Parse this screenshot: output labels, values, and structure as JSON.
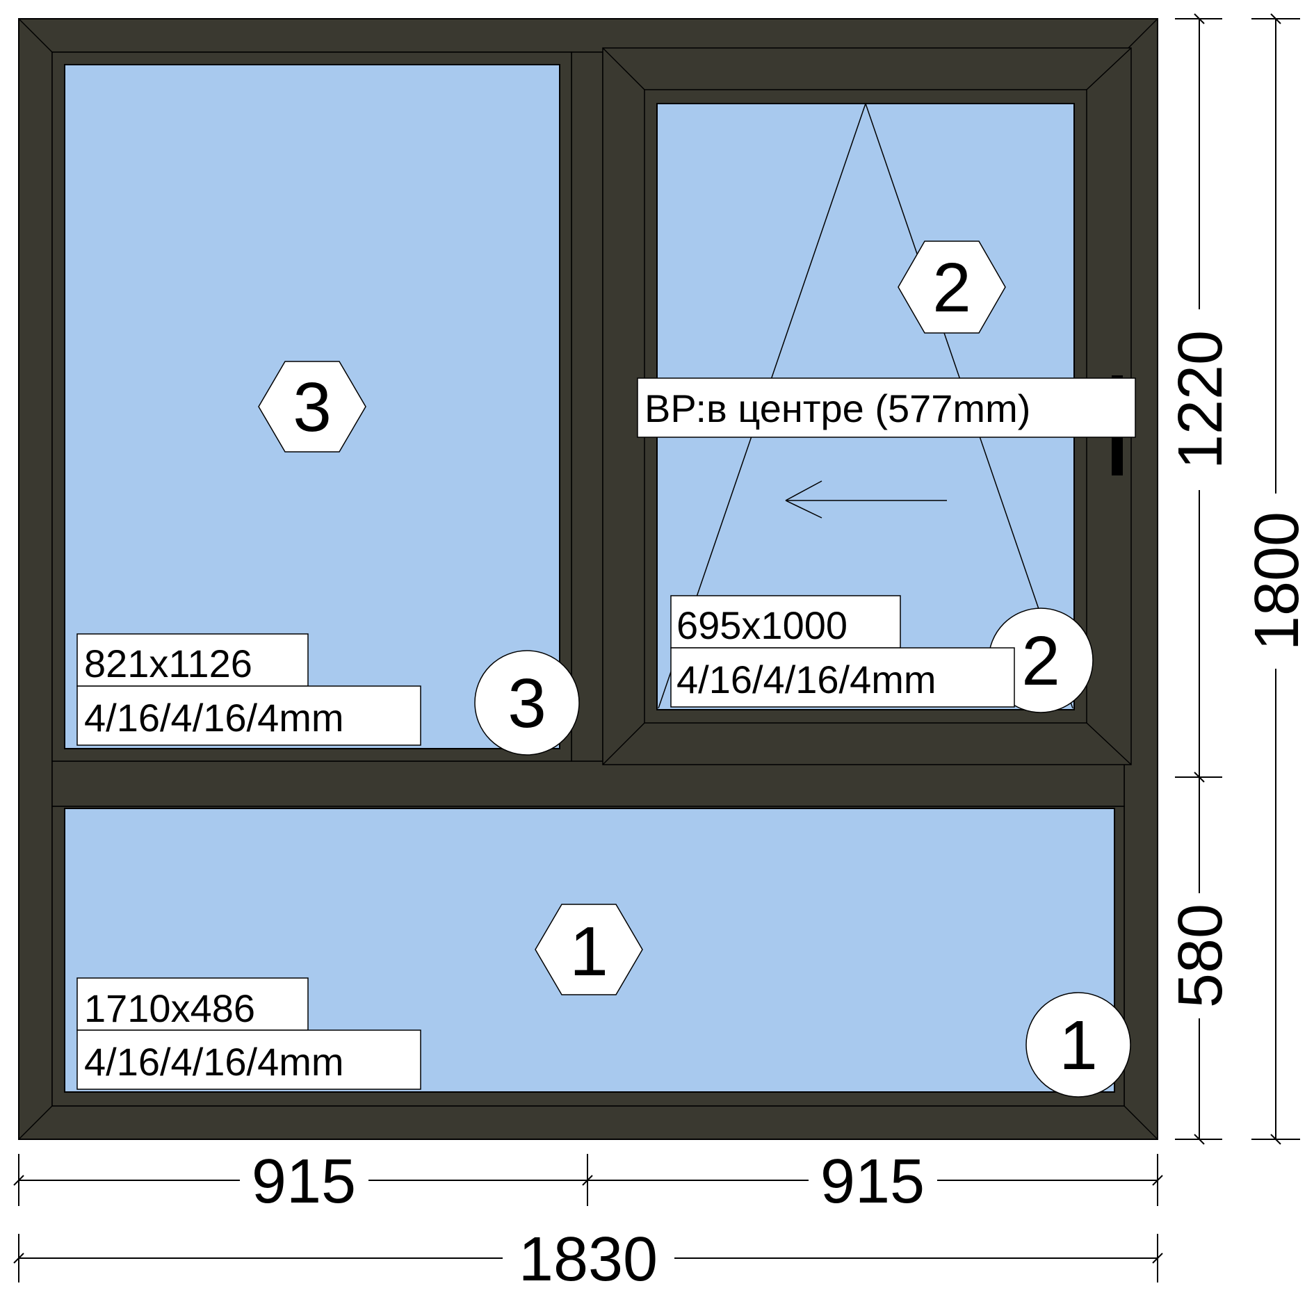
{
  "panes": [
    {
      "id": "3",
      "label": "3",
      "size": "821x1126",
      "glazing": "4/16/4/16/4mm"
    },
    {
      "id": "2",
      "label": "2",
      "size": "695x1000",
      "glazing": "4/16/4/16/4mm",
      "handle_note": "ВР:в центре (577mm)"
    },
    {
      "id": "1",
      "label": "1",
      "size": "1710x486",
      "glazing": "4/16/4/16/4mm"
    }
  ],
  "dimensions": {
    "width_left": "915",
    "width_right": "915",
    "width_total": "1830",
    "height_top": "1220",
    "height_bottom": "580",
    "height_total": "1800"
  },
  "colors": {
    "frame": "#3a3930",
    "glass": "#a8c9ee"
  }
}
